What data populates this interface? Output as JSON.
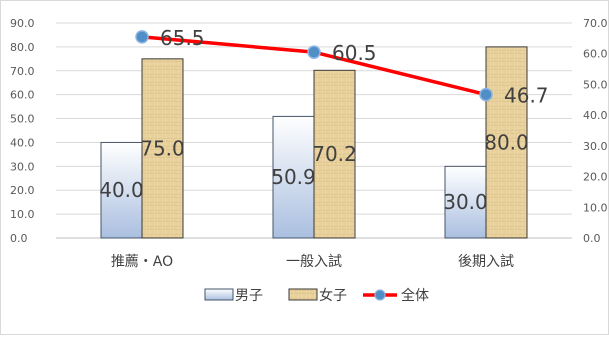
{
  "chart_data": {
    "type": "bar+line",
    "categories": [
      "推薦・AO",
      "一般入試",
      "後期入試"
    ],
    "series": [
      {
        "name": "男子",
        "type": "bar",
        "axis": "left",
        "values": [
          40.0,
          50.9,
          30.0
        ],
        "labels": [
          "40.0",
          "50.9",
          "30.0"
        ],
        "color": "#c9d6ea"
      },
      {
        "name": "女子",
        "type": "bar",
        "axis": "left",
        "values": [
          75.0,
          70.2,
          80.0
        ],
        "labels": [
          "75.0",
          "70.2",
          "80.0"
        ],
        "color": "#e6cf98"
      },
      {
        "name": "全体",
        "type": "line",
        "axis": "right",
        "values": [
          65.5,
          60.5,
          46.7
        ],
        "labels": [
          "65.5",
          "60.5",
          "46.7"
        ],
        "color": "#ff0000",
        "marker_color": "#4f8fc6"
      }
    ],
    "left_axis": {
      "min": 0,
      "max": 90,
      "step": 10,
      "ticks": [
        "0.0",
        "10.0",
        "20.0",
        "30.0",
        "40.0",
        "50.0",
        "60.0",
        "70.0",
        "80.0",
        "90.0"
      ]
    },
    "right_axis": {
      "min": 0,
      "max": 70,
      "step": 10,
      "ticks": [
        "0.0",
        "10.0",
        "20.0",
        "30.0",
        "40.0",
        "50.0",
        "60.0",
        "70.0"
      ]
    },
    "grid": true,
    "legend": "bottom"
  }
}
